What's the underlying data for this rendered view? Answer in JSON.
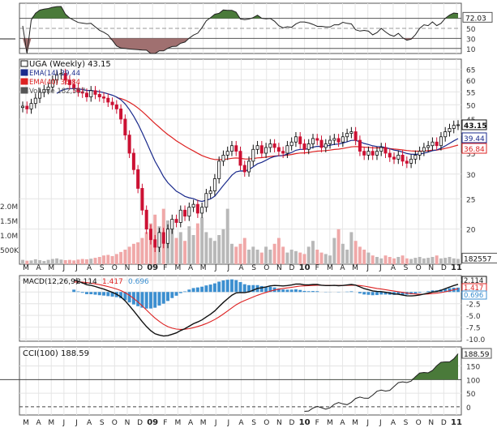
{
  "chart_data": {
    "type": "stock-chart",
    "symbol_label": "UGA (Weekly)",
    "last_price": 43.15,
    "colors": {
      "up": "#111111",
      "down": "#cc1133",
      "ema14": "#1a2a8c",
      "ema40": "#dd2222",
      "volume_up": "#b8b8b8",
      "volume_down": "#f0a8a8",
      "macd_hist": "#3c8fd0",
      "cci_fill": "#4a7a3a",
      "rsi_fill": "#4a7a3a",
      "rsi_low_fill": "#a07070",
      "badge_bg": "#ffffff"
    },
    "rsi": {
      "value_label": "72.03",
      "levels": [
        70,
        50,
        30,
        10
      ],
      "tick_labels": [
        "70",
        "50",
        "30",
        "10"
      ],
      "range": [
        0,
        100
      ]
    },
    "price_panel": {
      "legend": [
        {
          "label": "UGA (Weekly) 43.15",
          "color": "#111111"
        },
        {
          "label": "EMA(14) 39.44",
          "color": "#1a2a8c"
        },
        {
          "label": "EMA(40) 36.84",
          "color": "#dd2222"
        },
        {
          "label": "Volume 182,557",
          "color": "#555555"
        }
      ],
      "y_ticks": [
        65,
        60,
        55,
        50,
        45,
        40,
        35,
        30,
        25,
        20
      ],
      "y_tick_labels": [
        "65",
        "60",
        "55",
        "50",
        "45",
        "40",
        "35",
        "30",
        "25",
        "20"
      ],
      "ylim": [
        16,
        70
      ],
      "badges": [
        {
          "label": "43.15",
          "value": 43.15,
          "color": "#111111"
        },
        {
          "label": "39.44",
          "value": 39.44,
          "color": "#1a2a8c"
        },
        {
          "label": "36.84",
          "value": 36.84,
          "color": "#dd2222"
        }
      ],
      "volume_tick_labels": [
        "2.0M",
        "1.5M",
        "1.0M",
        "500K"
      ],
      "volume_ticks": [
        2000000,
        1500000,
        1000000,
        500000
      ],
      "volume_badge": "182557",
      "volume_max": 2500000
    },
    "macd": {
      "legend_label": "MACD(12,26,9)",
      "values_labels": [
        "2.114",
        "1.417",
        "0.696"
      ],
      "value_colors": [
        "#111111",
        "#dd2222",
        "#3c8fd0"
      ],
      "y_ticks": [
        2.5,
        0,
        -2.5,
        -5,
        -7.5,
        -10
      ],
      "y_tick_labels": [
        "2.5",
        "0.0",
        "-2.5",
        "-5.0",
        "-7.5",
        "-10.0"
      ],
      "badges": [
        "2.114",
        "1.417",
        "0.696"
      ],
      "ylim": [
        -10.5,
        3.5
      ]
    },
    "cci": {
      "legend_label": "CCI(100) 188.59",
      "badge": "188.59",
      "y_ticks": [
        150,
        100,
        50,
        0
      ],
      "y_tick_labels": [
        "150",
        "100",
        "50",
        "0"
      ],
      "ylim": [
        -30,
        220
      ]
    },
    "x_axis": {
      "labels": [
        "M",
        "A",
        "M",
        "J",
        "J",
        "A",
        "S",
        "O",
        "N",
        "D",
        "09",
        "F",
        "M",
        "A",
        "M",
        "J",
        "J",
        "A",
        "S",
        "O",
        "N",
        "D",
        "10",
        "F",
        "M",
        "A",
        "M",
        "J",
        "J",
        "A",
        "S",
        "O",
        "N",
        "D",
        "11"
      ],
      "bold": [
        "09",
        "10",
        "11"
      ]
    },
    "weekly_close": [
      49.5,
      48.5,
      50.5,
      52.5,
      54.8,
      56.0,
      57.0,
      60.0,
      62.5,
      63.0,
      60.0,
      58.0,
      56.5,
      55.0,
      54.5,
      53.0,
      55.5,
      54.0,
      53.0,
      52.5,
      51.0,
      50.0,
      48.5,
      45.0,
      40.0,
      35.0,
      31.0,
      27.0,
      23.0,
      20.0,
      18.5,
      17.5,
      19.5,
      18.0,
      20.0,
      21.5,
      21.0,
      23.0,
      22.0,
      23.5,
      24.0,
      22.5,
      23.5,
      26.0,
      26.5,
      29.0,
      33.0,
      34.5,
      35.5,
      37.0,
      35.5,
      32.0,
      30.5,
      33.0,
      36.0,
      37.0,
      35.0,
      36.5,
      37.5,
      36.5,
      35.5,
      35.0,
      37.0,
      38.0,
      39.5,
      37.5,
      36.0,
      37.5,
      39.0,
      38.5,
      36.5,
      37.5,
      38.5,
      39.0,
      38.0,
      39.5,
      40.5,
      41.0,
      38.5,
      35.5,
      34.5,
      35.5,
      34.5,
      35.5,
      36.5,
      35.0,
      34.0,
      33.5,
      34.5,
      33.0,
      32.5,
      33.5,
      34.5,
      35.5,
      36.5,
      37.0,
      38.0,
      37.0,
      39.5,
      41.0,
      42.0,
      43.0,
      43.15
    ],
    "weekly_volume": [
      150000,
      120000,
      130000,
      170000,
      140000,
      110000,
      150000,
      180000,
      200000,
      160000,
      140000,
      150000,
      130000,
      160000,
      180000,
      170000,
      190000,
      220000,
      250000,
      300000,
      320000,
      280000,
      350000,
      420000,
      500000,
      600000,
      700000,
      750000,
      900000,
      1100000,
      1400000,
      1700000,
      1300000,
      1900000,
      1500000,
      1200000,
      900000,
      1100000,
      800000,
      1300000,
      1000000,
      1400000,
      1600000,
      1100000,
      900000,
      800000,
      1000000,
      1200000,
      1900000,
      700000,
      600000,
      700000,
      900000,
      500000,
      600000,
      500000,
      400000,
      600000,
      500000,
      700000,
      900000,
      600000,
      400000,
      500000,
      450000,
      400000,
      350000,
      600000,
      800000,
      500000,
      400000,
      350000,
      300000,
      900000,
      1200000,
      700000,
      500000,
      1100000,
      800000,
      600000,
      500000,
      400000,
      300000,
      250000,
      200000,
      300000,
      250000,
      200000,
      250000,
      300000,
      200000,
      180000,
      220000,
      250000,
      200000,
      220000,
      250000,
      300000,
      200000,
      220000,
      250000,
      200000,
      182557
    ]
  }
}
